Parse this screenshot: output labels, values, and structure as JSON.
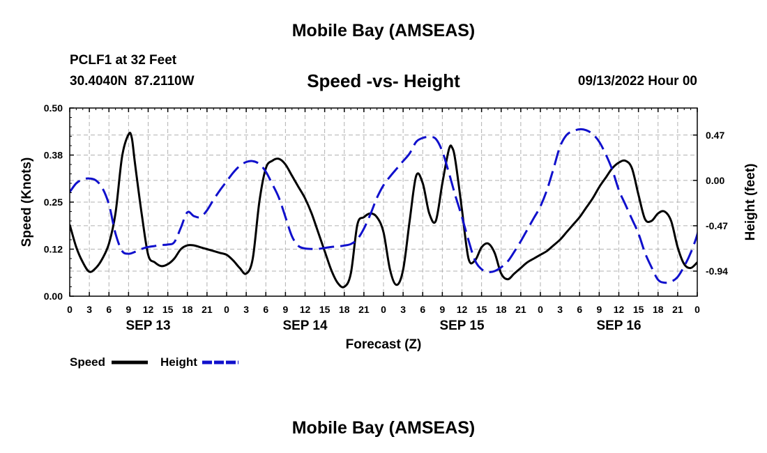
{
  "header": {
    "title": "Mobile Bay (AMSEAS)",
    "station": "PCLF1 at 32 Feet",
    "coords": "30.4040N  87.2110W",
    "subtitle": "Speed -vs- Height",
    "datetime": "09/13/2022 Hour 00",
    "footer_title": "Mobile Bay (AMSEAS)"
  },
  "chart_data": {
    "type": "line",
    "title": "Speed -vs- Height",
    "xlabel": "Forecast (Z)",
    "ylabel": "Speed (Knots)",
    "y2label": "Height (feet)",
    "x_unit": "hours from 09/13/2022 00Z",
    "xlim": [
      0,
      96
    ],
    "ylim": [
      0,
      0.5
    ],
    "y2lim": [
      -1.2,
      0.75
    ],
    "x_tick_labels": [
      "0",
      "3",
      "6",
      "9",
      "12",
      "15",
      "18",
      "21",
      "0",
      "3",
      "6",
      "9",
      "12",
      "15",
      "18",
      "21",
      "0",
      "3",
      "6",
      "9",
      "12",
      "15",
      "18",
      "21",
      "0",
      "3",
      "6",
      "9",
      "12",
      "15",
      "18",
      "21",
      "0"
    ],
    "y_tick_labels": [
      "0.00",
      "0.12",
      "0.25",
      "0.38",
      "0.50"
    ],
    "y2_tick_labels": [
      "-0.94",
      "-0.47",
      "0.00",
      "0.47"
    ],
    "y2_tick_values": [
      -0.94,
      -0.47,
      0.0,
      0.47
    ],
    "day_labels": [
      {
        "label": "SEP 13",
        "x": 12
      },
      {
        "label": "SEP 14",
        "x": 36
      },
      {
        "label": "SEP 15",
        "x": 60
      },
      {
        "label": "SEP 16",
        "x": 84
      }
    ],
    "grid": true,
    "legend_position": "bottom-left",
    "series": [
      {
        "name": "Speed",
        "axis": "left",
        "color": "#000000",
        "style": "solid",
        "points": [
          [
            0,
            0.19
          ],
          [
            1,
            0.13
          ],
          [
            2,
            0.09
          ],
          [
            3,
            0.065
          ],
          [
            4,
            0.075
          ],
          [
            5,
            0.1
          ],
          [
            6,
            0.14
          ],
          [
            7,
            0.22
          ],
          [
            8,
            0.37
          ],
          [
            9,
            0.43
          ],
          [
            9.5,
            0.42
          ],
          [
            10,
            0.35
          ],
          [
            11,
            0.22
          ],
          [
            12,
            0.11
          ],
          [
            13,
            0.09
          ],
          [
            14,
            0.08
          ],
          [
            15,
            0.085
          ],
          [
            16,
            0.1
          ],
          [
            17,
            0.125
          ],
          [
            18,
            0.135
          ],
          [
            19,
            0.135
          ],
          [
            20,
            0.13
          ],
          [
            21,
            0.125
          ],
          [
            22,
            0.12
          ],
          [
            23,
            0.115
          ],
          [
            24,
            0.11
          ],
          [
            25,
            0.095
          ],
          [
            26,
            0.075
          ],
          [
            27,
            0.06
          ],
          [
            28,
            0.1
          ],
          [
            29,
            0.25
          ],
          [
            30,
            0.34
          ],
          [
            31,
            0.36
          ],
          [
            32,
            0.365
          ],
          [
            33,
            0.35
          ],
          [
            34,
            0.32
          ],
          [
            35,
            0.29
          ],
          [
            36,
            0.26
          ],
          [
            37,
            0.22
          ],
          [
            38,
            0.17
          ],
          [
            39,
            0.12
          ],
          [
            40,
            0.07
          ],
          [
            41,
            0.035
          ],
          [
            42,
            0.025
          ],
          [
            43,
            0.06
          ],
          [
            44,
            0.19
          ],
          [
            45,
            0.21
          ],
          [
            46,
            0.22
          ],
          [
            47,
            0.21
          ],
          [
            48,
            0.17
          ],
          [
            49,
            0.07
          ],
          [
            50,
            0.03
          ],
          [
            51,
            0.07
          ],
          [
            52,
            0.2
          ],
          [
            53,
            0.32
          ],
          [
            54,
            0.3
          ],
          [
            55,
            0.22
          ],
          [
            56,
            0.2
          ],
          [
            57,
            0.3
          ],
          [
            58,
            0.39
          ],
          [
            58.5,
            0.395
          ],
          [
            59,
            0.36
          ],
          [
            60,
            0.23
          ],
          [
            61,
            0.1
          ],
          [
            62,
            0.095
          ],
          [
            63,
            0.13
          ],
          [
            64,
            0.14
          ],
          [
            65,
            0.115
          ],
          [
            66,
            0.06
          ],
          [
            67,
            0.045
          ],
          [
            68,
            0.06
          ],
          [
            69,
            0.075
          ],
          [
            70,
            0.09
          ],
          [
            71,
            0.1
          ],
          [
            72,
            0.11
          ],
          [
            73,
            0.12
          ],
          [
            74,
            0.135
          ],
          [
            75,
            0.15
          ],
          [
            76,
            0.17
          ],
          [
            77,
            0.19
          ],
          [
            78,
            0.21
          ],
          [
            79,
            0.235
          ],
          [
            80,
            0.26
          ],
          [
            81,
            0.29
          ],
          [
            82,
            0.315
          ],
          [
            83,
            0.34
          ],
          [
            84,
            0.355
          ],
          [
            85,
            0.36
          ],
          [
            86,
            0.34
          ],
          [
            87,
            0.27
          ],
          [
            88,
            0.205
          ],
          [
            89,
            0.2
          ],
          [
            90,
            0.22
          ],
          [
            91,
            0.225
          ],
          [
            92,
            0.2
          ],
          [
            93,
            0.13
          ],
          [
            94,
            0.085
          ],
          [
            95,
            0.075
          ],
          [
            96,
            0.09
          ],
          [
            96.5,
            0.1
          ]
        ]
      },
      {
        "name": "Height",
        "axis": "right",
        "color": "#1010cc",
        "style": "dashed",
        "points": [
          [
            0,
            -0.12
          ],
          [
            1,
            -0.03
          ],
          [
            2,
            0.01
          ],
          [
            3,
            0.02
          ],
          [
            4,
            0.0
          ],
          [
            5,
            -0.08
          ],
          [
            6,
            -0.25
          ],
          [
            7,
            -0.55
          ],
          [
            8,
            -0.73
          ],
          [
            9,
            -0.76
          ],
          [
            10,
            -0.74
          ],
          [
            11,
            -0.71
          ],
          [
            12,
            -0.69
          ],
          [
            13,
            -0.68
          ],
          [
            14,
            -0.67
          ],
          [
            15,
            -0.665
          ],
          [
            16,
            -0.64
          ],
          [
            17,
            -0.49
          ],
          [
            18,
            -0.33
          ],
          [
            19,
            -0.37
          ],
          [
            20,
            -0.38
          ],
          [
            21,
            -0.31
          ],
          [
            22,
            -0.2
          ],
          [
            23,
            -0.1
          ],
          [
            24,
            -0.01
          ],
          [
            25,
            0.08
          ],
          [
            26,
            0.15
          ],
          [
            27,
            0.19
          ],
          [
            28,
            0.2
          ],
          [
            29,
            0.17
          ],
          [
            30,
            0.09
          ],
          [
            31,
            -0.04
          ],
          [
            32,
            -0.18
          ],
          [
            33,
            -0.38
          ],
          [
            34,
            -0.58
          ],
          [
            35,
            -0.68
          ],
          [
            36,
            -0.705
          ],
          [
            37,
            -0.71
          ],
          [
            38,
            -0.71
          ],
          [
            39,
            -0.7
          ],
          [
            40,
            -0.69
          ],
          [
            41,
            -0.685
          ],
          [
            42,
            -0.675
          ],
          [
            43,
            -0.66
          ],
          [
            44,
            -0.61
          ],
          [
            45,
            -0.5
          ],
          [
            46,
            -0.35
          ],
          [
            47,
            -0.18
          ],
          [
            48,
            -0.05
          ],
          [
            49,
            0.04
          ],
          [
            50,
            0.12
          ],
          [
            51,
            0.2
          ],
          [
            52,
            0.28
          ],
          [
            53,
            0.4
          ],
          [
            54,
            0.44
          ],
          [
            55,
            0.45
          ],
          [
            56,
            0.43
          ],
          [
            57,
            0.3
          ],
          [
            58,
            0.08
          ],
          [
            59,
            -0.16
          ],
          [
            60,
            -0.38
          ],
          [
            61,
            -0.62
          ],
          [
            62,
            -0.83
          ],
          [
            63,
            -0.92
          ],
          [
            64,
            -0.95
          ],
          [
            65,
            -0.94
          ],
          [
            66,
            -0.9
          ],
          [
            67,
            -0.84
          ],
          [
            68,
            -0.74
          ],
          [
            69,
            -0.63
          ],
          [
            70,
            -0.51
          ],
          [
            71,
            -0.39
          ],
          [
            72,
            -0.27
          ],
          [
            73,
            -0.1
          ],
          [
            74,
            0.12
          ],
          [
            75,
            0.35
          ],
          [
            76,
            0.47
          ],
          [
            77,
            0.51
          ],
          [
            78,
            0.53
          ],
          [
            79,
            0.52
          ],
          [
            80,
            0.48
          ],
          [
            81,
            0.4
          ],
          [
            82,
            0.27
          ],
          [
            83,
            0.11
          ],
          [
            84,
            -0.1
          ],
          [
            85,
            -0.25
          ],
          [
            86,
            -0.4
          ],
          [
            87,
            -0.55
          ],
          [
            88,
            -0.75
          ],
          [
            89,
            -0.9
          ],
          [
            90,
            -1.03
          ],
          [
            91,
            -1.06
          ],
          [
            92,
            -1.05
          ],
          [
            93,
            -1.0
          ],
          [
            94,
            -0.89
          ],
          [
            95,
            -0.75
          ],
          [
            96,
            -0.56
          ],
          [
            96.5,
            -0.4
          ]
        ]
      }
    ]
  }
}
